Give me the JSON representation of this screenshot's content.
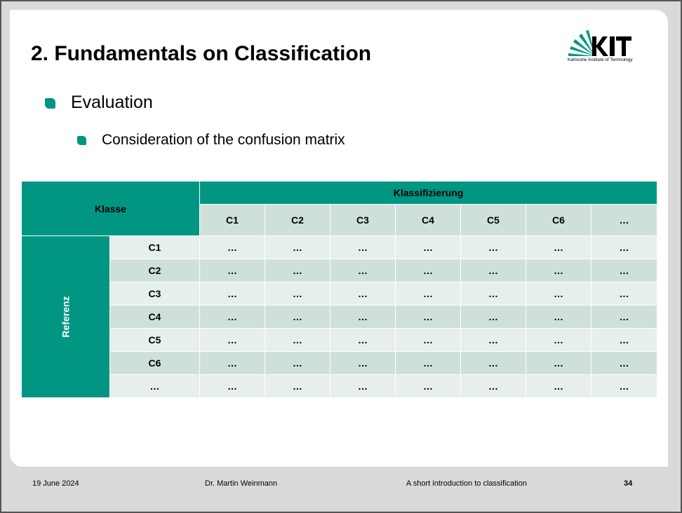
{
  "slide": {
    "title": "2. Fundamentals on Classification",
    "logo_caption": "Karlsruhe Institute of Technology",
    "logo_text": "KIT",
    "bullets": {
      "level1": "Evaluation",
      "level2": "Consideration of the confusion matrix"
    }
  },
  "matrix": {
    "corner_label": "Klasse",
    "top_header": "Klassifizierung",
    "side_header": "Referenz",
    "columns": [
      "C1",
      "C2",
      "C3",
      "C4",
      "C5",
      "C6",
      "…"
    ],
    "rows": [
      {
        "label": "C1",
        "cells": [
          "…",
          "…",
          "…",
          "…",
          "…",
          "…",
          "…"
        ]
      },
      {
        "label": "C2",
        "cells": [
          "…",
          "…",
          "…",
          "…",
          "…",
          "…",
          "…"
        ]
      },
      {
        "label": "C3",
        "cells": [
          "…",
          "…",
          "…",
          "…",
          "…",
          "…",
          "…"
        ]
      },
      {
        "label": "C4",
        "cells": [
          "…",
          "…",
          "…",
          "…",
          "…",
          "…",
          "…"
        ]
      },
      {
        "label": "C5",
        "cells": [
          "…",
          "…",
          "…",
          "…",
          "…",
          "…",
          "…"
        ]
      },
      {
        "label": "C6",
        "cells": [
          "…",
          "…",
          "…",
          "…",
          "…",
          "…",
          "…"
        ]
      },
      {
        "label": "…",
        "cells": [
          "…",
          "…",
          "…",
          "…",
          "…",
          "…",
          "…"
        ]
      }
    ]
  },
  "footer": {
    "date": "19 June 2024",
    "author": "Dr. Martin Weinmann",
    "subject": "A short introduction to classification",
    "page": "34"
  },
  "colors": {
    "accent": "#009682",
    "row_light": "#e6efec",
    "row_dark": "#cfe0db"
  }
}
